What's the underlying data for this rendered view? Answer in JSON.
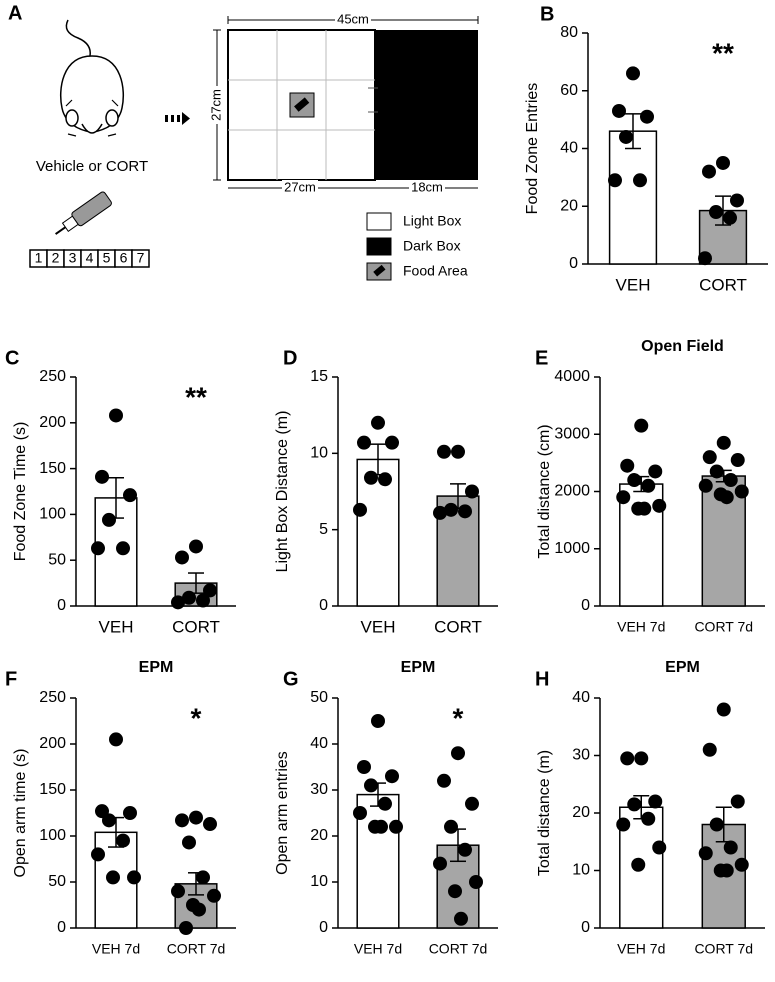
{
  "diagram": {
    "panel": "A",
    "treatment": "Vehicle or CORT",
    "days": [
      "1",
      "2",
      "3",
      "4",
      "5",
      "6",
      "7"
    ],
    "width_total": "45cm",
    "height": "27cm",
    "width_light": "27cm",
    "width_dark": "18cm",
    "legend": [
      "Light Box",
      "Dark Box",
      "Food Area"
    ]
  },
  "chart_data": [
    {
      "panel": "B",
      "type": "bar",
      "y_label": "Food Zone Entries",
      "categories": [
        "VEH",
        "CORT"
      ],
      "values": [
        46,
        18.5
      ],
      "errors": [
        6,
        5
      ],
      "points": [
        [
          66,
          53,
          51,
          44,
          29,
          29
        ],
        [
          35,
          32,
          22,
          18,
          16,
          2
        ]
      ],
      "annotation": "**",
      "colors": [
        "#ffffff",
        "#a6a6a6"
      ],
      "ylim": [
        0,
        80
      ],
      "yticks": [
        0,
        20,
        40,
        60,
        80
      ]
    },
    {
      "panel": "C",
      "type": "bar",
      "y_label": "Food Zone Time (s)",
      "categories": [
        "VEH",
        "CORT"
      ],
      "values": [
        118,
        25
      ],
      "errors": [
        22,
        11
      ],
      "points": [
        [
          208,
          141,
          121,
          94,
          63,
          63
        ],
        [
          65,
          53,
          17,
          9,
          6,
          4
        ]
      ],
      "annotation": "**",
      "colors": [
        "#ffffff",
        "#a6a6a6"
      ],
      "ylim": [
        0,
        250
      ],
      "yticks": [
        0,
        50,
        100,
        150,
        200,
        250
      ]
    },
    {
      "panel": "D",
      "type": "bar",
      "y_label": "Light Box Distance (m)",
      "categories": [
        "VEH",
        "CORT"
      ],
      "values": [
        9.6,
        7.2
      ],
      "errors": [
        1,
        0.8
      ],
      "points": [
        [
          12,
          10.7,
          10.7,
          8.4,
          8.3,
          6.3
        ],
        [
          10.1,
          10.1,
          7.5,
          6.3,
          6.2,
          6.1
        ]
      ],
      "colors": [
        "#ffffff",
        "#a6a6a6"
      ],
      "ylim": [
        0,
        15
      ],
      "yticks": [
        0,
        5,
        10,
        15
      ]
    },
    {
      "panel": "E",
      "type": "bar",
      "title": "Open Field",
      "y_label": "Total distance (cm)",
      "categories": [
        "VEH 7d",
        "CORT 7d"
      ],
      "values": [
        2130,
        2270
      ],
      "errors": [
        130,
        100
      ],
      "points": [
        [
          3150,
          2450,
          2350,
          2200,
          2100,
          1900,
          1750,
          1700,
          1700
        ],
        [
          2850,
          2600,
          2550,
          2350,
          2200,
          2100,
          2000,
          1950,
          1900
        ]
      ],
      "colors": [
        "#ffffff",
        "#a6a6a6"
      ],
      "ylim": [
        0,
        4000
      ],
      "yticks": [
        0,
        1000,
        2000,
        3000,
        4000
      ]
    },
    {
      "panel": "F",
      "type": "bar",
      "title": "EPM",
      "y_label": "Open arm time (s)",
      "categories": [
        "VEH 7d",
        "CORT 7d"
      ],
      "values": [
        104,
        48
      ],
      "errors": [
        16,
        12
      ],
      "points": [
        [
          205,
          127,
          125,
          117,
          95,
          80,
          55,
          55
        ],
        [
          120,
          117,
          113,
          93,
          55,
          40,
          35,
          25,
          20,
          0
        ]
      ],
      "annotation": "*",
      "colors": [
        "#ffffff",
        "#a6a6a6"
      ],
      "ylim": [
        0,
        250
      ],
      "yticks": [
        0,
        50,
        100,
        150,
        200,
        250
      ]
    },
    {
      "panel": "G",
      "type": "bar",
      "title": "EPM",
      "y_label": "Open arm entries",
      "categories": [
        "VEH 7d",
        "CORT 7d"
      ],
      "values": [
        29,
        18
      ],
      "errors": [
        2.5,
        3.5
      ],
      "points": [
        [
          45,
          35,
          33,
          31,
          27,
          25,
          22,
          22,
          22
        ],
        [
          38,
          32,
          27,
          22,
          17,
          14,
          10,
          8,
          2
        ]
      ],
      "annotation": "*",
      "colors": [
        "#ffffff",
        "#a6a6a6"
      ],
      "ylim": [
        0,
        50
      ],
      "yticks": [
        0,
        10,
        20,
        30,
        40,
        50
      ]
    },
    {
      "panel": "H",
      "type": "bar",
      "title": "EPM",
      "y_label": "Total distance (m)",
      "categories": [
        "VEH 7d",
        "CORT 7d"
      ],
      "values": [
        21,
        18
      ],
      "errors": [
        2,
        3
      ],
      "points": [
        [
          29.5,
          29.5,
          22,
          21.5,
          19,
          18,
          14,
          11
        ],
        [
          38,
          31,
          22,
          18,
          14,
          13,
          11,
          10,
          10
        ]
      ],
      "colors": [
        "#ffffff",
        "#a6a6a6"
      ],
      "ylim": [
        0,
        40
      ],
      "yticks": [
        0,
        10,
        20,
        30,
        40
      ]
    }
  ]
}
